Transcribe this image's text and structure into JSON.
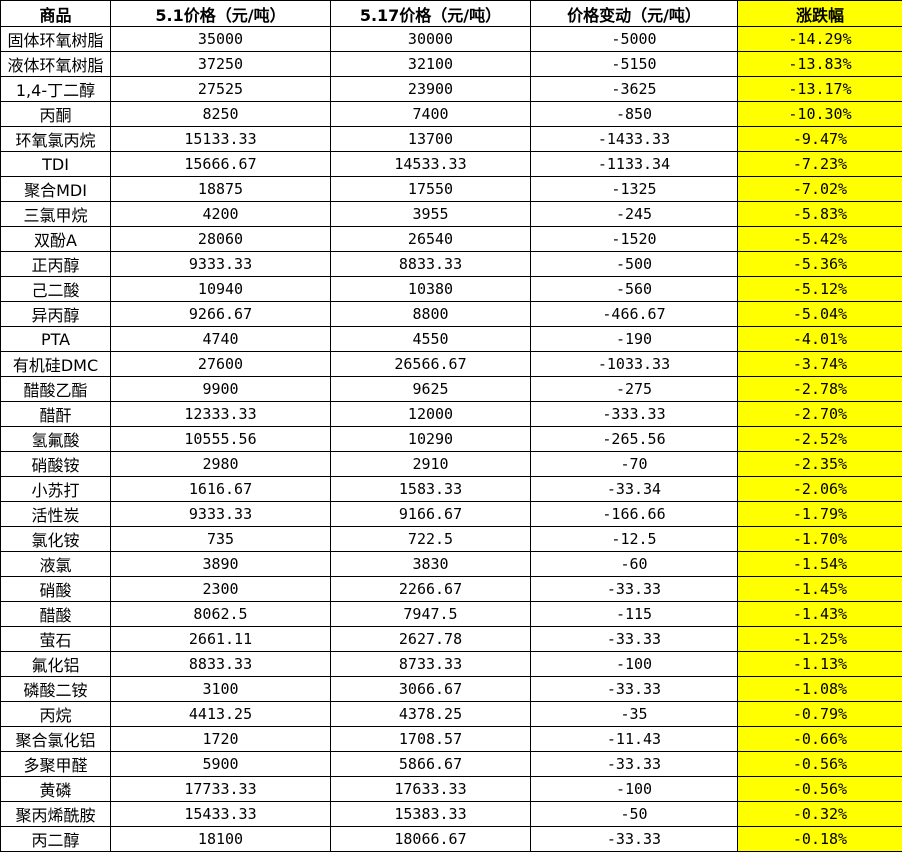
{
  "table": {
    "header": [
      "商品",
      "5.1价格（元/吨）",
      "5.17价格（元/吨）",
      "价格变动（元/吨）",
      "涨跌幅"
    ],
    "rows": [
      [
        "固体环氧树脂",
        "35000",
        "30000",
        "-5000",
        "-14.29%"
      ],
      [
        "液体环氧树脂",
        "37250",
        "32100",
        "-5150",
        "-13.83%"
      ],
      [
        "1,4-丁二醇",
        "27525",
        "23900",
        "-3625",
        "-13.17%"
      ],
      [
        "丙酮",
        "8250",
        "7400",
        "-850",
        "-10.30%"
      ],
      [
        "环氧氯丙烷",
        "15133.33",
        "13700",
        "-1433.33",
        "-9.47%"
      ],
      [
        "TDI",
        "15666.67",
        "14533.33",
        "-1133.34",
        "-7.23%"
      ],
      [
        "聚合MDI",
        "18875",
        "17550",
        "-1325",
        "-7.02%"
      ],
      [
        "三氯甲烷",
        "4200",
        "3955",
        "-245",
        "-5.83%"
      ],
      [
        "双酚A",
        "28060",
        "26540",
        "-1520",
        "-5.42%"
      ],
      [
        "正丙醇",
        "9333.33",
        "8833.33",
        "-500",
        "-5.36%"
      ],
      [
        "己二酸",
        "10940",
        "10380",
        "-560",
        "-5.12%"
      ],
      [
        "异丙醇",
        "9266.67",
        "8800",
        "-466.67",
        "-5.04%"
      ],
      [
        "PTA",
        "4740",
        "4550",
        "-190",
        "-4.01%"
      ],
      [
        "有机硅DMC",
        "27600",
        "26566.67",
        "-1033.33",
        "-3.74%"
      ],
      [
        "醋酸乙酯",
        "9900",
        "9625",
        "-275",
        "-2.78%"
      ],
      [
        "醋酐",
        "12333.33",
        "12000",
        "-333.33",
        "-2.70%"
      ],
      [
        "氢氟酸",
        "10555.56",
        "10290",
        "-265.56",
        "-2.52%"
      ],
      [
        "硝酸铵",
        "2980",
        "2910",
        "-70",
        "-2.35%"
      ],
      [
        "小苏打",
        "1616.67",
        "1583.33",
        "-33.34",
        "-2.06%"
      ],
      [
        "活性炭",
        "9333.33",
        "9166.67",
        "-166.66",
        "-1.79%"
      ],
      [
        "氯化铵",
        "735",
        "722.5",
        "-12.5",
        "-1.70%"
      ],
      [
        "液氯",
        "3890",
        "3830",
        "-60",
        "-1.54%"
      ],
      [
        "硝酸",
        "2300",
        "2266.67",
        "-33.33",
        "-1.45%"
      ],
      [
        "醋酸",
        "8062.5",
        "7947.5",
        "-115",
        "-1.43%"
      ],
      [
        "萤石",
        "2661.11",
        "2627.78",
        "-33.33",
        "-1.25%"
      ],
      [
        "氟化铝",
        "8833.33",
        "8733.33",
        "-100",
        "-1.13%"
      ],
      [
        "磷酸二铵",
        "3100",
        "3066.67",
        "-33.33",
        "-1.08%"
      ],
      [
        "丙烷",
        "4413.25",
        "4378.25",
        "-35",
        "-0.79%"
      ],
      [
        "聚合氯化铝",
        "1720",
        "1708.57",
        "-11.43",
        "-0.66%"
      ],
      [
        "多聚甲醛",
        "5900",
        "5866.67",
        "-33.33",
        "-0.56%"
      ],
      [
        "黄磷",
        "17733.33",
        "17633.33",
        "-100",
        "-0.56%"
      ],
      [
        "聚丙烯酰胺",
        "15433.33",
        "15383.33",
        "-50",
        "-0.32%"
      ],
      [
        "丙二醇",
        "18100",
        "18066.67",
        "-33.33",
        "-0.18%"
      ]
    ]
  }
}
